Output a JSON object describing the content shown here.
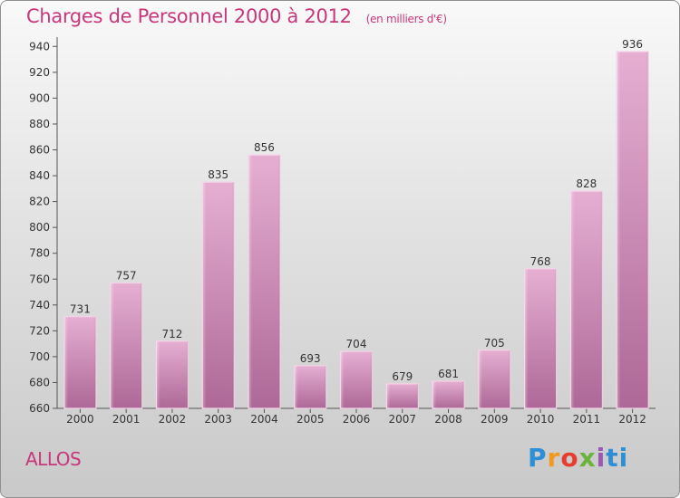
{
  "title": "Charges de Personnel 2000 à 2012",
  "subtitle": "(en milliers d'€)",
  "place": "ALLOS",
  "logo": {
    "parts": [
      "P",
      "r",
      "o",
      "x",
      "i",
      "ti"
    ]
  },
  "colors": {
    "title": "#c8377b",
    "bar_top": "#e2a7cc",
    "bar_bottom": "#b06b9a",
    "axis": "#555555"
  },
  "chart_data": {
    "type": "bar",
    "title": "Charges de Personnel 2000 à 2012",
    "subtitle": "(en milliers d'€)",
    "xlabel": "",
    "ylabel": "",
    "categories": [
      "2000",
      "2001",
      "2002",
      "2003",
      "2004",
      "2005",
      "2006",
      "2007",
      "2008",
      "2009",
      "2010",
      "2011",
      "2012"
    ],
    "values": [
      731,
      757,
      712,
      835,
      856,
      693,
      704,
      679,
      681,
      705,
      768,
      828,
      936
    ],
    "ylim": [
      660,
      945
    ],
    "yticks": [
      660,
      680,
      700,
      720,
      740,
      760,
      780,
      800,
      820,
      840,
      860,
      880,
      900,
      920,
      940
    ],
    "grid": false,
    "legend": "none"
  }
}
